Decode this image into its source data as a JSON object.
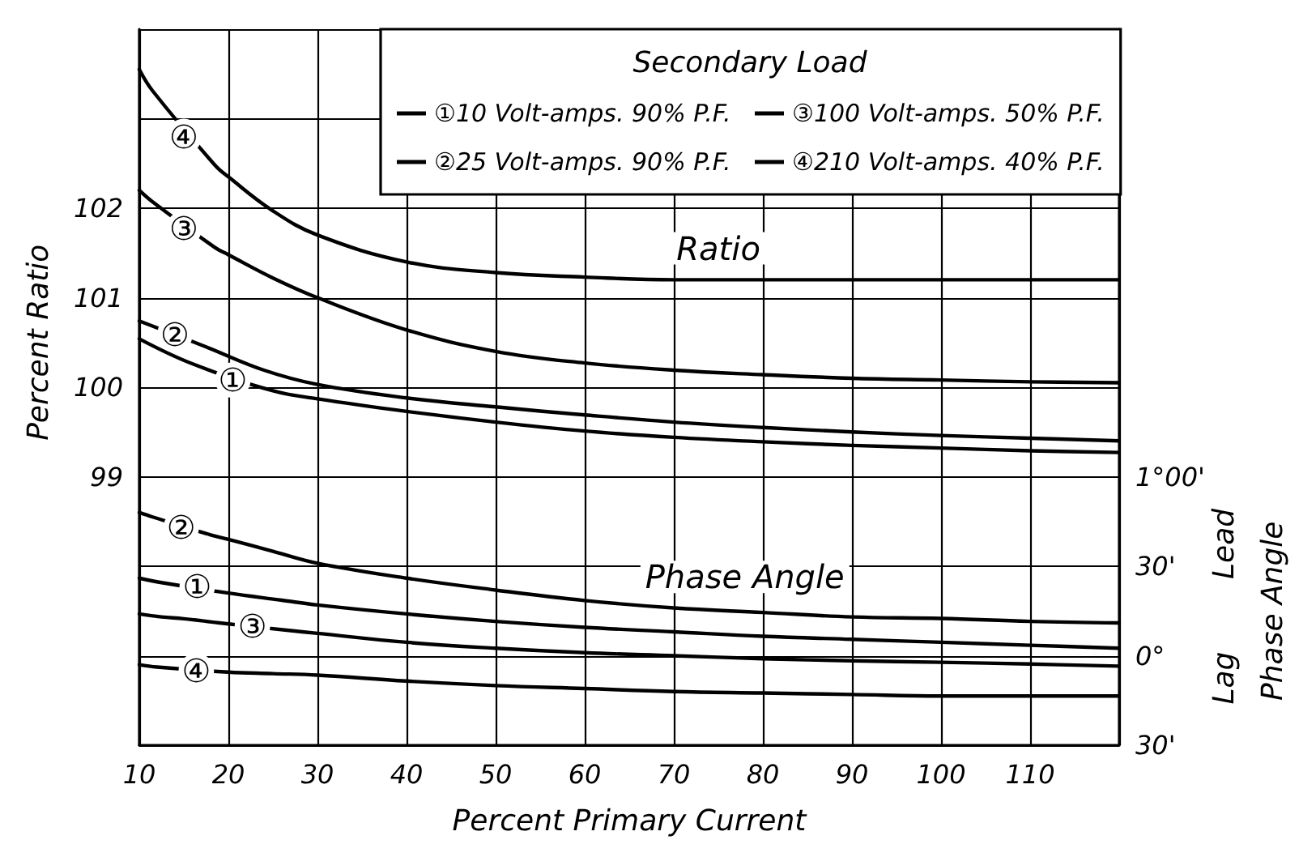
{
  "chart_data": {
    "type": "line",
    "series": [
      {
        "name": "①10 Volt-amps. 90% P.F.",
        "color": "#000000",
        "x": [
          10,
          16,
          25,
          30,
          40,
          50,
          60,
          70,
          80,
          90,
          100,
          110,
          120
        ],
        "values": [
          100.54,
          100.26,
          99.96,
          99.87,
          99.73,
          99.61,
          99.51,
          99.44,
          99.39,
          99.35,
          99.32,
          99.29,
          99.27
        ]
      },
      {
        "name": "②25 Volt-amps. 90% P.F.",
        "color": "#000000",
        "x": [
          10,
          17.5,
          24,
          30,
          40,
          50,
          60,
          70,
          80,
          90,
          100,
          110,
          120
        ],
        "values": [
          100.74,
          100.45,
          100.19,
          100.03,
          99.88,
          99.78,
          99.69,
          99.61,
          99.55,
          99.5,
          99.46,
          99.43,
          99.4
        ]
      },
      {
        "name": "③100 Volt-amps. 50% P.F.",
        "color": "#000000",
        "x": [
          10,
          11.5,
          18.5,
          20,
          25,
          30,
          40,
          50,
          60,
          70,
          80,
          90,
          100,
          110,
          120
        ],
        "values": [
          102.2,
          102.07,
          101.56,
          101.48,
          101.22,
          101.0,
          100.64,
          100.4,
          100.27,
          100.19,
          100.14,
          100.1,
          100.08,
          100.06,
          100.05
        ]
      },
      {
        "name": "④210 Volt-amps. 40% P.F.",
        "color": "#000000",
        "x": [
          10,
          11.5,
          18.5,
          20,
          25,
          30,
          40,
          50,
          60,
          70,
          80,
          90,
          100,
          110,
          120
        ],
        "values": [
          103.55,
          103.31,
          102.48,
          102.35,
          101.97,
          101.7,
          101.4,
          101.28,
          101.23,
          101.2,
          101.2,
          101.2,
          101.2,
          101.2,
          101.2
        ]
      },
      {
        "color": "#000000",
        "axis": "y2",
        "x": [
          10,
          12.5,
          20,
          26,
          30,
          40,
          50,
          60,
          70,
          80,
          90,
          100,
          110,
          120
        ],
        "values": [
          26,
          24.5,
          21,
          18.6,
          17,
          14,
          11.5,
          9.5,
          8,
          6.5,
          5.5,
          4.5,
          3.5,
          2.5
        ]
      },
      {
        "color": "#000000",
        "axis": "y2",
        "x": [
          10,
          11.5,
          18,
          20,
          25,
          30,
          40,
          50,
          60,
          70,
          80,
          90,
          100,
          110,
          120
        ],
        "values": [
          48,
          46.5,
          40.5,
          39,
          35,
          31,
          26,
          22,
          18.5,
          16,
          14.5,
          13,
          12.5,
          11.5,
          11
        ]
      },
      {
        "color": "#000000",
        "axis": "y2",
        "x": [
          10,
          12.5,
          15,
          19,
          27,
          30,
          40,
          50,
          60,
          70,
          80,
          90,
          100,
          110,
          120
        ],
        "values": [
          14,
          13,
          12.4,
          11,
          8.4,
          7.5,
          4.5,
          2.5,
          1,
          0,
          -1,
          -1.7,
          -2.2,
          -2.8,
          -3.5
        ]
      },
      {
        "color": "#000000",
        "axis": "y2",
        "x": [
          10,
          12,
          20,
          25,
          30,
          40,
          50,
          60,
          70,
          80,
          90,
          100,
          110,
          120
        ],
        "values": [
          -3,
          -3.8,
          -5.5,
          -6,
          -6.5,
          -8.5,
          -10,
          -11,
          -12,
          -12.5,
          -13,
          -13.5,
          -13.5,
          -13.5
        ]
      }
    ],
    "xlim": [
      10,
      120
    ],
    "xticks": [
      10,
      20,
      30,
      40,
      50,
      60,
      70,
      80,
      90,
      100,
      110,
      {
        "value": 120,
        "label": null
      }
    ],
    "ylim": [
      96,
      104
    ],
    "yticks": [
      {
        "value": 96,
        "label": null
      },
      {
        "value": 97,
        "label": null
      },
      {
        "value": 98,
        "label": null
      },
      99,
      100,
      101,
      102,
      {
        "value": 103,
        "label": null
      },
      {
        "value": 104,
        "label": null
      }
    ],
    "y2lim": [
      -30,
      210
    ],
    "y2ticks": [
      {
        "value": -30,
        "label": "30'"
      },
      {
        "value": 0,
        "label": "0°"
      },
      {
        "value": 30,
        "label": "30'"
      },
      {
        "value": 60,
        "label": "1°00'"
      }
    ],
    "xlabel": "Percent Primary Current",
    "ylabel": "Percent Ratio",
    "y2label": "Phase Angle",
    "legend_title": "Secondary Load",
    "legend": "top right",
    "grid": true,
    "marker": "none",
    "line_style": "solid",
    "annotations": [
      {
        "text": "④",
        "x": 15,
        "y": 102.8
      },
      {
        "text": "③",
        "x": 15,
        "y": 101.77
      },
      {
        "text": "②",
        "x": 14,
        "y": 100.59
      },
      {
        "text": "①",
        "x": 20.5,
        "y": 100.08
      },
      {
        "text": "②",
        "x": 14.7,
        "y": 98.43
      },
      {
        "text": "①",
        "x": 16.5,
        "y": 97.77
      },
      {
        "text": "③",
        "x": 22.7,
        "y": 97.33
      },
      {
        "text": "④",
        "x": 16.4,
        "y": 96.83
      },
      "Ratio",
      "Phase Angle",
      "Lead",
      "Lag"
    ]
  }
}
